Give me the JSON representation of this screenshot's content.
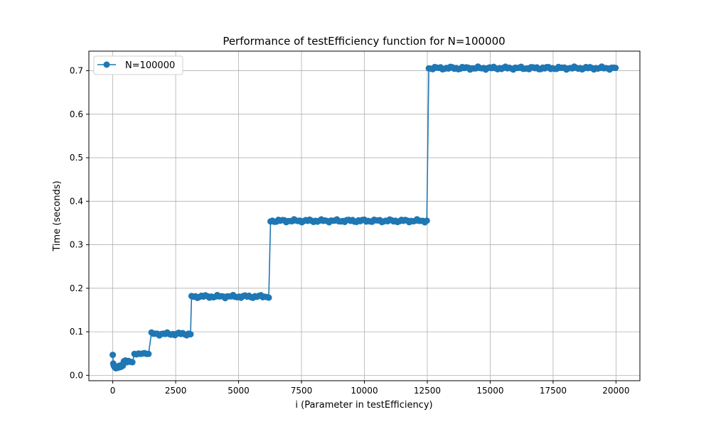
{
  "chart_data": {
    "type": "line",
    "title": "Performance of testEfficiency function for N=100000",
    "xlabel": "i (Parameter in testEfficiency)",
    "ylabel": "Time (seconds)",
    "xlim": [
      -950,
      20950
    ],
    "ylim": [
      -0.0125,
      0.745
    ],
    "x_ticks": [
      0,
      2500,
      5000,
      7500,
      10000,
      12500,
      15000,
      17500,
      20000
    ],
    "x_tick_labels": [
      "0",
      "2500",
      "5000",
      "7500",
      "10000",
      "12500",
      "15000",
      "17500",
      "20000"
    ],
    "y_ticks": [
      0.0,
      0.1,
      0.2,
      0.3,
      0.4,
      0.5,
      0.6,
      0.7
    ],
    "y_tick_labels": [
      "0.0",
      "0.1",
      "0.2",
      "0.3",
      "0.4",
      "0.5",
      "0.6",
      "0.7"
    ],
    "grid": true,
    "legend_position": "top-left",
    "color": "#1f77b4",
    "series": [
      {
        "name": "N=100000",
        "steps": [
          {
            "x_start": 0,
            "x_end": 1500,
            "level": 0.03,
            "special": [
              [
                0,
                0.047
              ],
              [
                20,
                0.027
              ],
              [
                40,
                0.022
              ],
              [
                80,
                0.018
              ],
              [
                120,
                0.016
              ],
              [
                160,
                0.02
              ],
              [
                200,
                0.017
              ],
              [
                260,
                0.022
              ],
              [
                320,
                0.019
              ],
              [
                360,
                0.024
              ],
              [
                400,
                0.022
              ],
              [
                440,
                0.032
              ],
              [
                500,
                0.034
              ],
              [
                560,
                0.03
              ],
              [
                620,
                0.033
              ],
              [
                700,
                0.031
              ],
              [
                780,
                0.03
              ],
              [
                860,
                0.049
              ],
              [
                940,
                0.048
              ],
              [
                1020,
                0.05
              ],
              [
                1100,
                0.049
              ],
              [
                1180,
                0.05
              ],
              [
                1260,
                0.051
              ],
              [
                1340,
                0.049
              ],
              [
                1420,
                0.049
              ]
            ]
          },
          {
            "x_start": 1540,
            "x_end": 3090,
            "level": 0.095
          },
          {
            "x_start": 3130,
            "x_end": 6200,
            "level": 0.181
          },
          {
            "x_start": 6270,
            "x_end": 12480,
            "level": 0.355
          },
          {
            "x_start": 12560,
            "x_end": 19980,
            "level": 0.706
          }
        ]
      }
    ]
  }
}
